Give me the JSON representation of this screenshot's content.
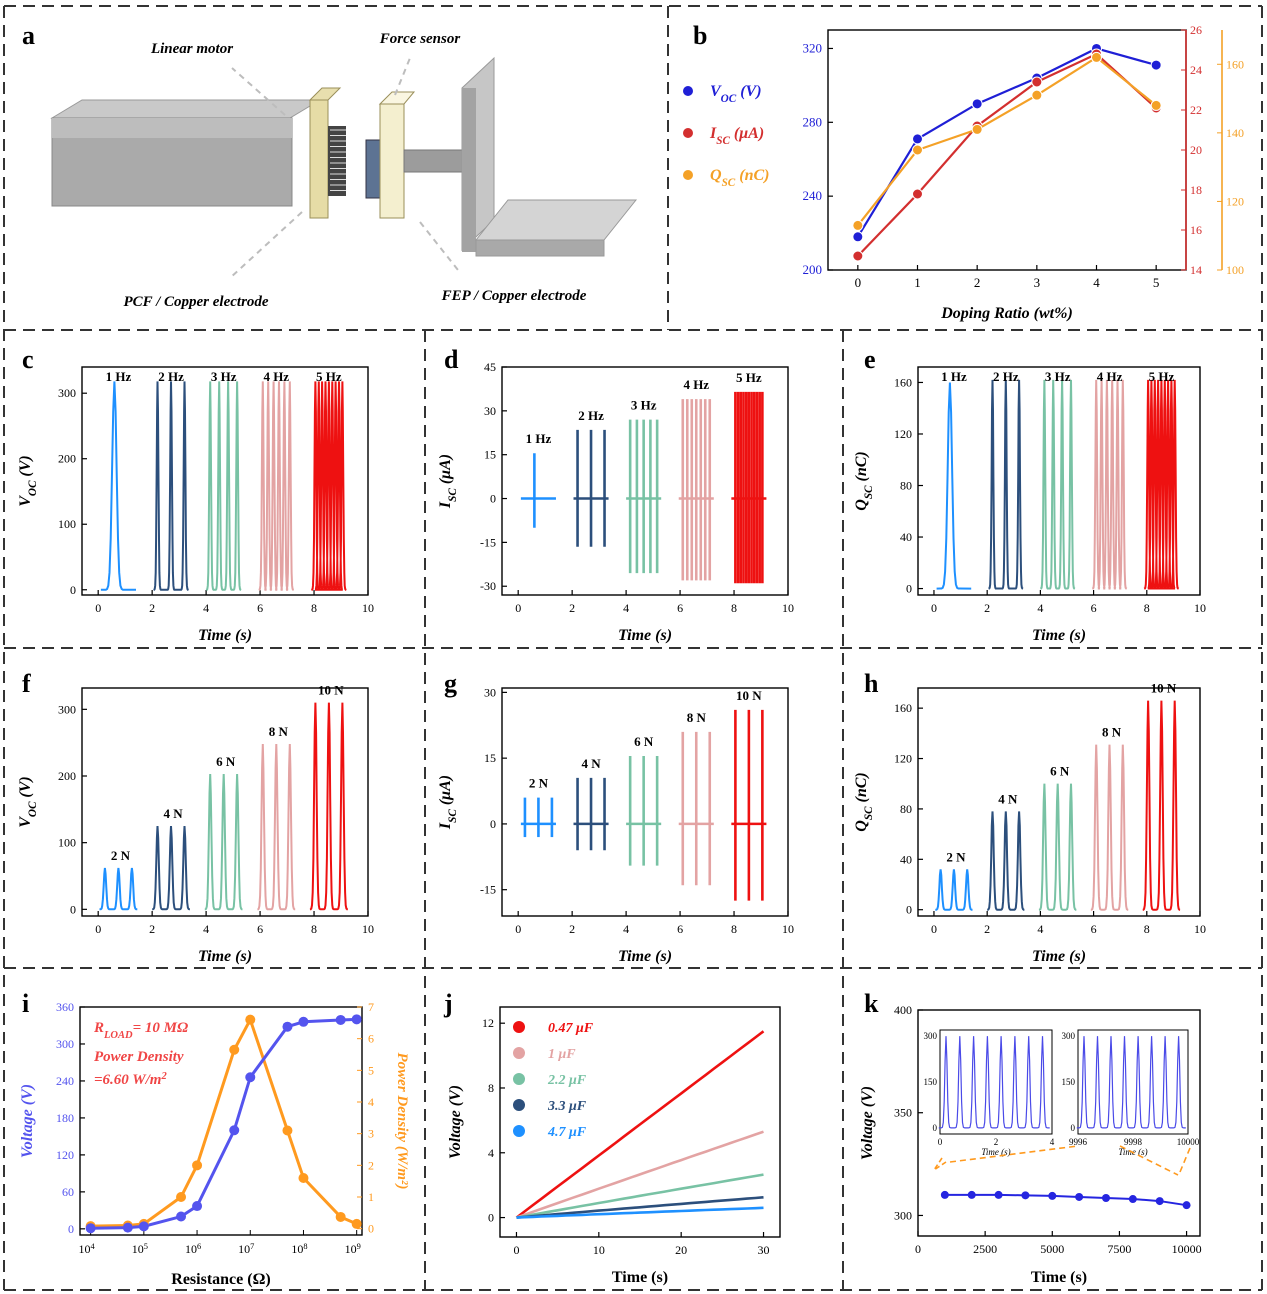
{
  "colors": {
    "blue": "#1f1fd6",
    "red": "#d32f2f",
    "orange": "#f4a127",
    "navy": "#2c4f7c",
    "lightblue": "#1e90ff",
    "green": "#78c2a4",
    "pink": "#e3a3a3",
    "brightred": "#ee1111",
    "violet": "#5454ee",
    "porange": "#ff9a1f",
    "blackred": "#f04545"
  },
  "chart_data": [
    {
      "panel": "a",
      "type": "diagram",
      "labels": {
        "motor": "Linear motor",
        "force": "Force sensor",
        "pcf": "PCF / Copper electrode",
        "fep": "FEP / Copper electrode"
      }
    },
    {
      "panel": "b",
      "type": "line",
      "xlabel": "Doping Ratio (wt%)",
      "x": [
        0,
        1,
        2,
        3,
        4,
        5
      ],
      "xticks": [
        "0",
        "1",
        "2",
        "3",
        "4",
        "5"
      ],
      "y_left_ticks": [
        "200",
        "240",
        "280",
        "320"
      ],
      "y_right1_ticks": [
        "14",
        "16",
        "18",
        "20",
        "22",
        "24",
        "26"
      ],
      "y_right2_ticks": [
        "100",
        "120",
        "140",
        "160"
      ],
      "legend": [
        "V",
        "I",
        "Q"
      ],
      "legend_sub": [
        "OC",
        "SC",
        "SC"
      ],
      "legend_unit": [
        " (V)",
        " (μA)",
        " (nC)"
      ],
      "series": [
        {
          "values": [
            218,
            271,
            290,
            304,
            320,
            311
          ],
          "axis": "left",
          "ylim": [
            200,
            330
          ]
        },
        {
          "values": [
            14.7,
            17.8,
            21.2,
            23.4,
            24.8,
            22.1
          ],
          "axis": "right1",
          "ylim": [
            14,
            26
          ]
        },
        {
          "values": [
            113,
            135,
            141,
            151,
            162,
            148
          ],
          "axis": "right2",
          "ylim": [
            100,
            170
          ]
        }
      ]
    },
    {
      "panel": "c",
      "type": "line",
      "xlabel": "Time (s)",
      "ylabel": "V",
      "ylabel_sub": "OC",
      "ylabel_unit": " (V)",
      "xticks": [
        "0",
        "2",
        "4",
        "6",
        "8",
        "10"
      ],
      "yticks": [
        "0",
        "100",
        "200",
        "300"
      ],
      "groups": [
        {
          "label": "1 Hz",
          "peak": 318,
          "freq": 1
        },
        {
          "label": "2 Hz",
          "peak": 318,
          "freq": 2
        },
        {
          "label": "3 Hz",
          "peak": 318,
          "freq": 3
        },
        {
          "label": "4 Hz",
          "peak": 318,
          "freq": 4
        },
        {
          "label": "5 Hz",
          "peak": 318,
          "freq": 5
        }
      ]
    },
    {
      "panel": "d",
      "type": "line",
      "xlabel": "Time (s)",
      "ylabel": "I",
      "ylabel_sub": "SC",
      "ylabel_unit": " (μA)",
      "xticks": [
        "0",
        "2",
        "4",
        "6",
        "8",
        "10"
      ],
      "yticks": [
        "-30",
        "-15",
        "0",
        "15",
        "30",
        "45"
      ],
      "groups": [
        {
          "label": "1 Hz",
          "pos": 15.5,
          "neg": -10
        },
        {
          "label": "2 Hz",
          "pos": 23.5,
          "neg": -16.5
        },
        {
          "label": "3 Hz",
          "pos": 27,
          "neg": -25.5
        },
        {
          "label": "4 Hz",
          "pos": 34,
          "neg": -28
        },
        {
          "label": "5 Hz",
          "pos": 36.5,
          "neg": -29
        }
      ]
    },
    {
      "panel": "e",
      "type": "line",
      "xlabel": "Time (s)",
      "ylabel": "Q",
      "ylabel_sub": "SC",
      "ylabel_unit": " (nC)",
      "xticks": [
        "0",
        "2",
        "4",
        "6",
        "8",
        "10"
      ],
      "yticks": [
        "0",
        "40",
        "80",
        "120",
        "160"
      ],
      "groups": [
        {
          "label": "1 Hz",
          "peak": 160
        },
        {
          "label": "2 Hz",
          "peak": 162
        },
        {
          "label": "3 Hz",
          "peak": 162
        },
        {
          "label": "4 Hz",
          "peak": 162
        },
        {
          "label": "5 Hz",
          "peak": 162
        }
      ]
    },
    {
      "panel": "f",
      "type": "line",
      "xlabel": "Time (s)",
      "ylabel": "V",
      "ylabel_sub": "OC",
      "ylabel_unit": " (V)",
      "xticks": [
        "0",
        "2",
        "4",
        "6",
        "8",
        "10"
      ],
      "yticks": [
        "0",
        "100",
        "200",
        "300"
      ],
      "groups": [
        {
          "label": "2 N",
          "peak": 62
        },
        {
          "label": "4 N",
          "peak": 125
        },
        {
          "label": "6 N",
          "peak": 203
        },
        {
          "label": "8 N",
          "peak": 248
        },
        {
          "label": "10 N",
          "peak": 310
        }
      ]
    },
    {
      "panel": "g",
      "type": "line",
      "xlabel": "Time (s)",
      "ylabel": "I",
      "ylabel_sub": "SC",
      "ylabel_unit": " (μA)",
      "xticks": [
        "0",
        "2",
        "4",
        "6",
        "8",
        "10"
      ],
      "yticks": [
        "-15",
        "0",
        "15",
        "30"
      ],
      "groups": [
        {
          "label": "2 N",
          "pos": 6,
          "neg": -3
        },
        {
          "label": "4 N",
          "pos": 10.5,
          "neg": -6
        },
        {
          "label": "6 N",
          "pos": 15.5,
          "neg": -9.5
        },
        {
          "label": "8 N",
          "pos": 21,
          "neg": -14
        },
        {
          "label": "10 N",
          "pos": 26,
          "neg": -17.5
        }
      ]
    },
    {
      "panel": "h",
      "type": "line",
      "xlabel": "Time (s)",
      "ylabel": "Q",
      "ylabel_sub": "SC",
      "ylabel_unit": " (nC)",
      "xticks": [
        "0",
        "2",
        "4",
        "6",
        "8",
        "10"
      ],
      "yticks": [
        "0",
        "40",
        "80",
        "120",
        "160"
      ],
      "groups": [
        {
          "label": "2 N",
          "peak": 32
        },
        {
          "label": "4 N",
          "peak": 78
        },
        {
          "label": "6 N",
          "peak": 100
        },
        {
          "label": "8 N",
          "peak": 131
        },
        {
          "label": "10 N",
          "peak": 166
        }
      ]
    },
    {
      "panel": "i",
      "type": "line",
      "xlabel": "Resistance (Ω)",
      "ylabel_left": "Voltage (V)",
      "ylabel_right": "Power Density (W/m²)",
      "x_scale": "log",
      "x": [
        10000,
        50000,
        100000,
        500000,
        1000000,
        5000000,
        10000000,
        50000000,
        100000000,
        500000000,
        1000000000
      ],
      "xticks": [
        "10",
        "10",
        "10",
        "10",
        "10",
        "10"
      ],
      "xtick_exp": [
        "4",
        "5",
        "6",
        "7",
        "8",
        "9"
      ],
      "yticks_left": [
        "0",
        "60",
        "120",
        "180",
        "240",
        "300",
        "360"
      ],
      "yticks_right": [
        "0",
        "1",
        "2",
        "3",
        "4",
        "5",
        "6",
        "7"
      ],
      "voltage": [
        1,
        2,
        4,
        20,
        37,
        160,
        246,
        328,
        336,
        339,
        340
      ],
      "power": [
        0.08,
        0.1,
        0.15,
        1,
        2,
        5.65,
        6.6,
        3.1,
        1.6,
        0.37,
        0.15
      ],
      "annotation_r": "R",
      "annotation_r_sub": "LOAD",
      "annotation_r_rest": "= 10 MΩ",
      "annotation_p1": "Power Density",
      "annotation_p2": "=6.60 W/m",
      "annotation_p2_sup": "2"
    },
    {
      "panel": "j",
      "type": "line",
      "xlabel": "Time (s)",
      "ylabel": "Voltage (V)",
      "xticks": [
        "0",
        "10",
        "20",
        "30"
      ],
      "yticks": [
        "0",
        "4",
        "8",
        "12"
      ],
      "series": [
        {
          "name": "0.47 μF",
          "end": 11.5
        },
        {
          "name": "1 μF",
          "end": 5.3
        },
        {
          "name": "2.2 μF",
          "end": 2.65
        },
        {
          "name": "3.3 μF",
          "end": 1.25
        },
        {
          "name": "4.7 μF",
          "end": 0.6
        }
      ]
    },
    {
      "panel": "k",
      "type": "line",
      "xlabel": "Time (s)",
      "ylabel": "Voltage (V)",
      "xticks": [
        "0",
        "2500",
        "5000",
        "7500",
        "10000"
      ],
      "yticks": [
        "300",
        "350",
        "400"
      ],
      "x": [
        1000,
        2000,
        3000,
        4000,
        5000,
        6000,
        7000,
        8000,
        9000,
        10000
      ],
      "values": [
        310,
        310,
        310,
        309.8,
        309.5,
        309,
        308.5,
        308,
        307,
        305
      ],
      "inset1": {
        "xticks": [
          "0",
          "2",
          "4"
        ],
        "yticks": [
          "0",
          "150",
          "300"
        ],
        "xlabel": "Time (s)"
      },
      "inset2": {
        "xticks": [
          "9996",
          "9998",
          "10000"
        ],
        "yticks": [
          "0",
          "150",
          "300"
        ],
        "xlabel": "Time (s)"
      }
    }
  ]
}
